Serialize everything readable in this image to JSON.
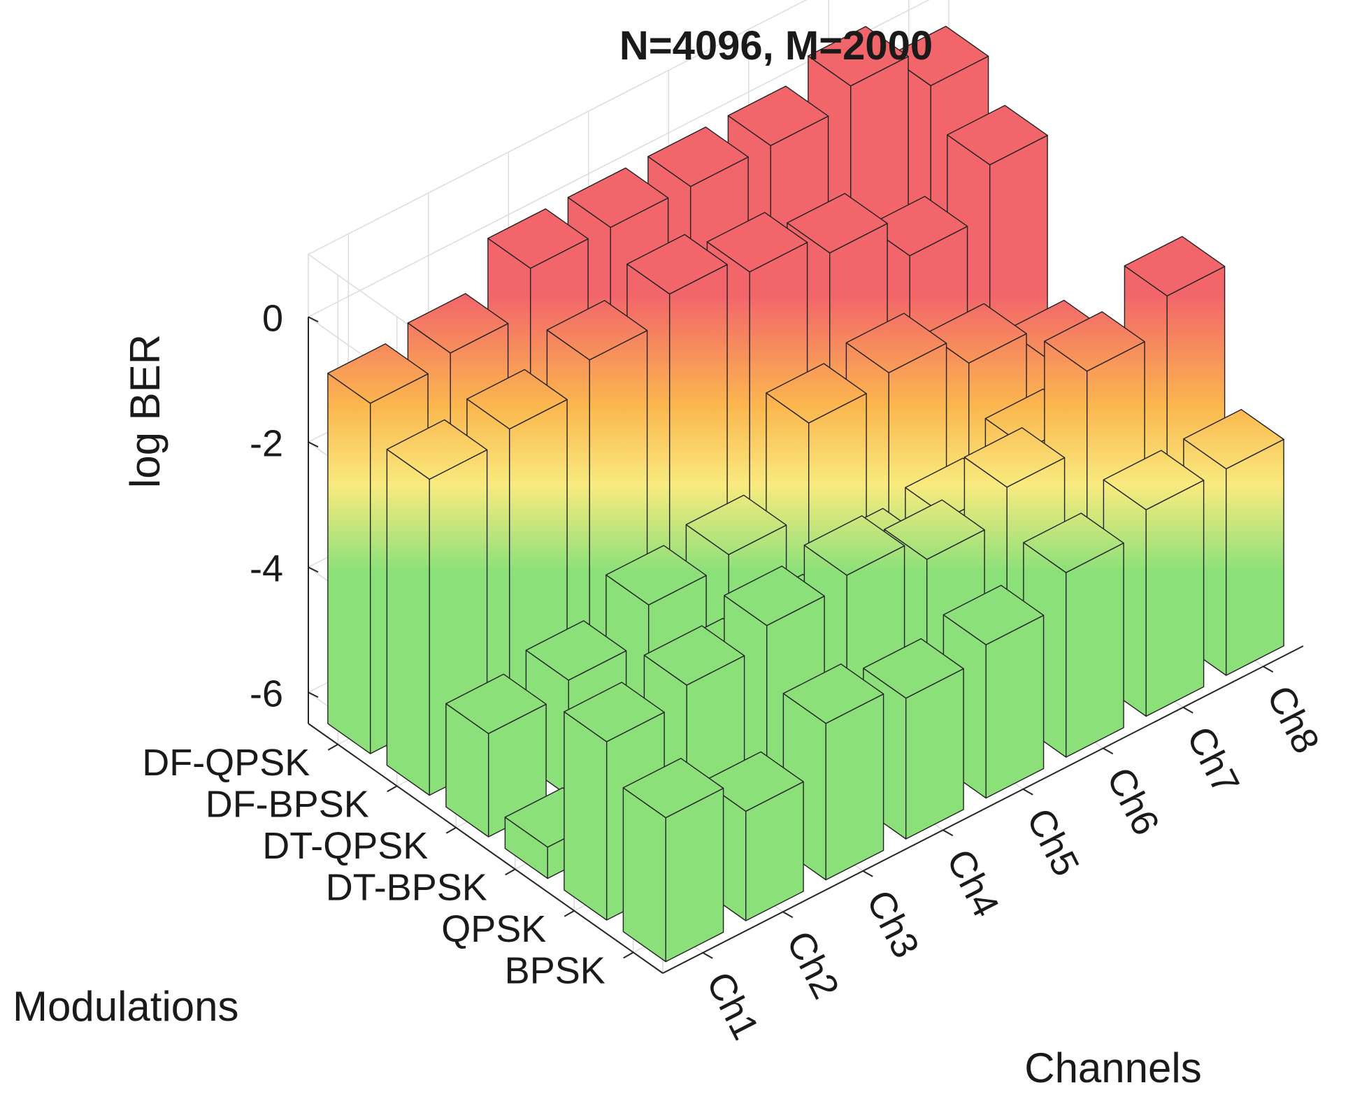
{
  "chart_data": {
    "type": "bar3d",
    "title": "N=4096, M=2000",
    "xlabel": "Channels",
    "ylabel": "Modulations",
    "zlabel": "log BER",
    "x_categories": [
      "Ch1",
      "Ch2",
      "Ch3",
      "Ch4",
      "Ch5",
      "Ch6",
      "Ch7",
      "Ch8"
    ],
    "y_categories": [
      "DF-QPSK",
      "DF-BPSK",
      "DT-QPSK",
      "DT-BPSK",
      "QPSK",
      "BPSK"
    ],
    "z_ticks": [
      0,
      -2,
      -4,
      -6
    ],
    "zlim": [
      -6.5,
      1
    ],
    "base": -6.5,
    "grid": true,
    "colormap": [
      "#8be07a",
      "#f9ea7e",
      "#fbb64e",
      "#f2656b"
    ],
    "series": [
      {
        "name": "DF-QPSK",
        "values": [
          -0.9,
          -0.75,
          -0.05,
          -0.05,
          -0.05,
          -0.05,
          0.25,
          -0.4
        ]
      },
      {
        "name": "DF-BPSK",
        "values": [
          -1.45,
          -1.3,
          -0.85,
          -0.45,
          -0.75,
          -1.1,
          -1.8,
          -1.0
        ]
      },
      {
        "name": "DT-QPSK",
        "values": [
          -4.85,
          -4.65,
          -4.1,
          -3.95,
          -2.5,
          -2.35,
          -2.85,
          -3.45
        ]
      },
      {
        "name": "DT-BPSK",
        "values": [
          -6.0,
          -5.95,
          -4.6,
          -4.55,
          -4.15,
          -4.0,
          -3.55,
          -3.6
        ]
      },
      {
        "name": "QPSK",
        "values": [
          -3.65,
          -3.4,
          -3.1,
          -2.95,
          -3.35,
          -2.85,
          -1.65,
          -1.1
        ]
      },
      {
        "name": "BPSK",
        "values": [
          -4.2,
          -4.75,
          -4.0,
          -4.25,
          -4.05,
          -3.55,
          -3.2,
          -3.2
        ]
      }
    ]
  }
}
